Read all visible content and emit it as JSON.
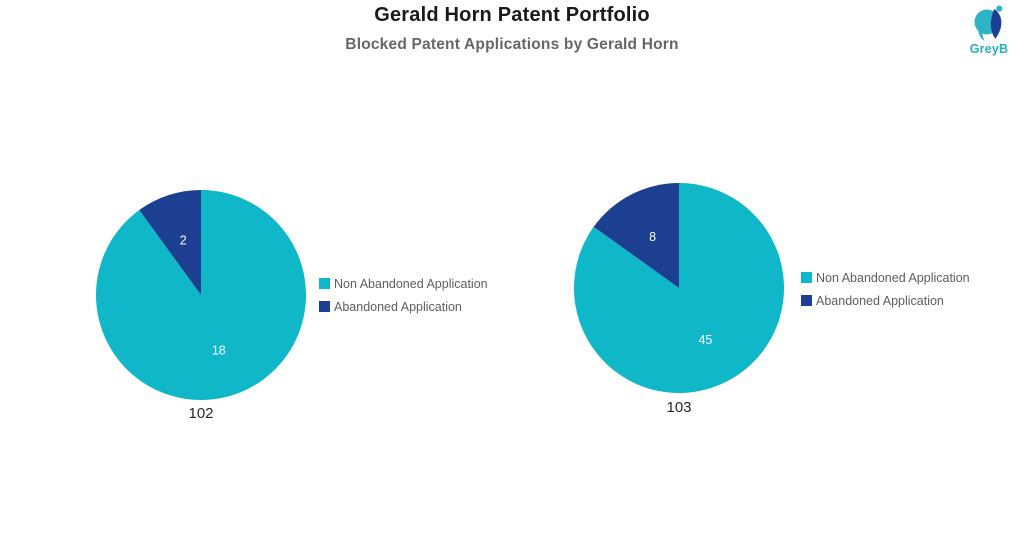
{
  "header": {
    "title": "Gerald Horn Patent Portfolio",
    "subtitle": "Blocked Patent Applications by Gerald Horn"
  },
  "logo": {
    "brand": "GreyB",
    "mark_colors": {
      "circle": "#2cb5c4",
      "crescent": "#1d3f91",
      "dot": "#2cb5c4"
    },
    "text_color": "#29b0be"
  },
  "colors": {
    "non_abandoned": "#10b7c9",
    "abandoned": "#1d3f91",
    "slice_value_label": "#ffffff",
    "legend_text": "#605e5c",
    "title_text": "#1a1a1a",
    "subtitle_text": "#666666",
    "caption_text": "#262626"
  },
  "chart_data": [
    {
      "type": "pie",
      "title": "102",
      "labels": [
        "Non Abandoned Application",
        "Abandoned Application"
      ],
      "values": [
        18,
        2
      ],
      "colors": [
        "#10b7c9",
        "#1d3f91"
      ],
      "total": 20,
      "start_angle_deg": 0,
      "direction": "clockwise",
      "legend_position": "right",
      "value_labels": [
        "18",
        "2"
      ]
    },
    {
      "type": "pie",
      "title": "103",
      "labels": [
        "Non Abandoned Application",
        "Abandoned Application"
      ],
      "values": [
        45,
        8
      ],
      "colors": [
        "#10b7c9",
        "#1d3f91"
      ],
      "total": 53,
      "start_angle_deg": 0,
      "direction": "clockwise",
      "legend_position": "right",
      "value_labels": [
        "45",
        "8"
      ]
    }
  ]
}
